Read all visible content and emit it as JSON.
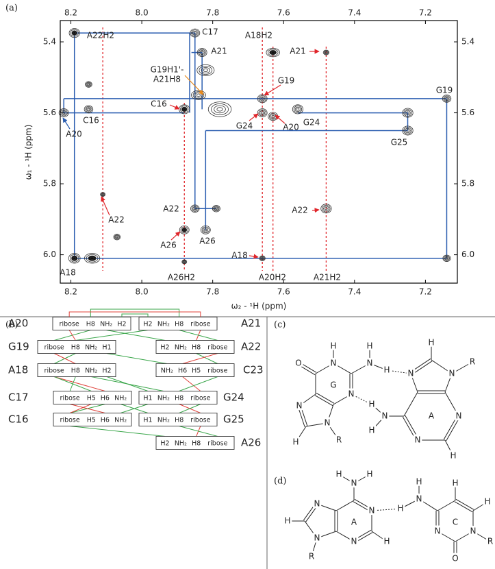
{
  "chart_data": {
    "type": "contour",
    "panel_label": "(a)",
    "x_label": "ω₂ - ¹H (ppm)",
    "y_label": "ω₁ - ¹H (ppm)",
    "xlim": [
      8.23,
      7.11
    ],
    "ylim": [
      5.34,
      6.08
    ],
    "xticks": [
      8.2,
      {
        "value": 8,
        "label": "8.0"
      },
      7.8,
      7.6,
      7.4,
      7.2
    ],
    "yticks": [
      5.4,
      5.6,
      5.8,
      {
        "value": 6,
        "label": "6.0"
      }
    ],
    "color": "#333333",
    "x": [
      8.19,
      8.15,
      8.15,
      8.22,
      8.19,
      8.14,
      7.85,
      7.83,
      7.88,
      7.88,
      7.88,
      7.82,
      7.85,
      7.79,
      7.78,
      7.66,
      7.66,
      7.63,
      7.63,
      7.48,
      7.48,
      7.56,
      7.25,
      7.25,
      7.66,
      7.14,
      7.14,
      7.82,
      8.07,
      7.84,
      8.11
    ],
    "values": [
      5.375,
      5.52,
      5.59,
      5.6,
      6.01,
      6.01,
      5.375,
      5.43,
      5.59,
      5.93,
      6.02,
      5.93,
      5.87,
      5.87,
      5.59,
      5.56,
      5.6,
      5.61,
      5.43,
      5.43,
      5.87,
      5.59,
      5.6,
      5.65,
      6.01,
      5.56,
      6.01,
      5.48,
      5.95,
      5.55,
      5.83
    ],
    "red_lines": [
      8.11,
      7.88,
      7.66,
      7.63,
      7.48
    ],
    "red_line_color": "#e0262b",
    "blue_lines": [
      [
        8.19,
        5.375,
        7.85,
        5.375
      ],
      [
        8.19,
        5.375,
        8.19,
        6.01
      ],
      [
        8.19,
        6.01,
        7.14,
        6.01
      ],
      [
        7.14,
        5.56,
        7.14,
        6.01
      ],
      [
        8.22,
        5.56,
        7.14,
        5.56
      ],
      [
        8.22,
        5.56,
        8.22,
        5.6
      ],
      [
        8.22,
        5.6,
        7.88,
        5.6
      ],
      [
        7.85,
        5.375,
        7.85,
        5.87
      ],
      [
        7.85,
        5.87,
        7.79,
        5.87
      ],
      [
        7.83,
        5.43,
        7.83,
        5.59
      ],
      [
        7.86,
        5.43,
        7.83,
        5.43
      ],
      [
        7.82,
        5.65,
        7.82,
        5.93
      ],
      [
        7.82,
        5.65,
        7.25,
        5.65
      ],
      [
        7.25,
        5.6,
        7.25,
        5.65
      ],
      [
        7.56,
        5.6,
        7.25,
        5.6
      ],
      [
        7.865,
        5.375,
        7.865,
        5.6
      ]
    ],
    "blue_line_color": "#2a5db0",
    "annotations": [
      {
        "text": "A22H2",
        "color": "#e0262b"
      },
      {
        "text": "C17",
        "color": "#2a5db0"
      },
      {
        "text": "A21",
        "color": "#2a5db0"
      },
      {
        "text": "A18H2",
        "color": "#e0262b"
      },
      {
        "text": "A21",
        "color": "#e0262b"
      },
      {
        "text": "G19H1'-",
        "color": "#e8891c"
      },
      {
        "text": "A21H8",
        "color": "#e8891c"
      },
      {
        "text": "C16",
        "color": "#e0262b"
      },
      {
        "text": "C16",
        "color": "#2a5db0"
      },
      {
        "text": "A20",
        "color": "#2a5db0"
      },
      {
        "text": "G19",
        "color": "#e0262b"
      },
      {
        "text": "G24",
        "color": "#e0262b"
      },
      {
        "text": "A20",
        "color": "#e0262b"
      },
      {
        "text": "G24",
        "color": "#2a5db0"
      },
      {
        "text": "G19",
        "color": "#2a5db0"
      },
      {
        "text": "G25",
        "color": "#2a5db0"
      },
      {
        "text": "A22",
        "color": "#2a5db0"
      },
      {
        "text": "A22",
        "color": "#e0262b"
      },
      {
        "text": "A22",
        "color": "#e0262b"
      },
      {
        "text": "A26",
        "color": "#e0262b"
      },
      {
        "text": "A26",
        "color": "#2a5db0"
      },
      {
        "text": "A18",
        "color": "#2a5db0"
      },
      {
        "text": "A18",
        "color": "#e0262b"
      },
      {
        "text": "A26H2",
        "color": "#e0262b"
      },
      {
        "text": "A20H2",
        "color": "#e0262b"
      },
      {
        "text": "A21H2",
        "color": "#e0262b"
      }
    ]
  },
  "panel_b": {
    "label": "(b)",
    "rows": [
      {
        "left": "A20",
        "left_cells": [
          "ribose",
          "H8",
          "NH₂",
          "H2"
        ],
        "right_cells": [
          "H2",
          "NH₂",
          "H8",
          "ribose"
        ],
        "right": "A21"
      },
      {
        "left": "G19",
        "left_cells": [
          "ribose",
          "H8",
          "NH₂",
          "H1"
        ],
        "right_cells": [
          "H2",
          "NH₂",
          "H8",
          "ribose"
        ],
        "right": "A22"
      },
      {
        "left": "A18",
        "left_cells": [
          "ribose",
          "H8",
          "NH₂",
          "H2"
        ],
        "right_cells": [
          "NH₂",
          "H6",
          "H5",
          "ribose"
        ],
        "right": "C23"
      },
      {
        "left": "C17",
        "left_cells": [
          "ribose",
          "H5",
          "H6",
          "NH₂"
        ],
        "right_cells": [
          "H1",
          "NH₂",
          "H8",
          "ribose"
        ],
        "right": "G24"
      },
      {
        "left": "C16",
        "left_cells": [
          "ribose",
          "H5",
          "H6",
          "NH₂"
        ],
        "right_cells": [
          "H1",
          "NH₂",
          "H8",
          "ribose"
        ],
        "right": "G25"
      },
      {
        "right_cells": [
          "H2",
          "NH₂",
          "H8",
          "ribose"
        ],
        "right": "A26"
      }
    ]
  },
  "panel_c": {
    "label": "(c)",
    "atoms": [
      "H",
      "N",
      "G",
      "O",
      "N",
      "H",
      "H",
      "N",
      "N",
      "H",
      "N",
      "R",
      "N",
      "H",
      "N",
      "R",
      "A",
      "N",
      "H",
      "N",
      "N",
      "H",
      "H"
    ]
  },
  "panel_d": {
    "label": "(d)",
    "atoms": [
      "N",
      "H",
      "H",
      "A",
      "N",
      "H",
      "N",
      "N",
      "H",
      "N",
      "R",
      "N",
      "H",
      "H",
      "H",
      "H",
      "C",
      "N",
      "R",
      "O",
      "N"
    ]
  }
}
